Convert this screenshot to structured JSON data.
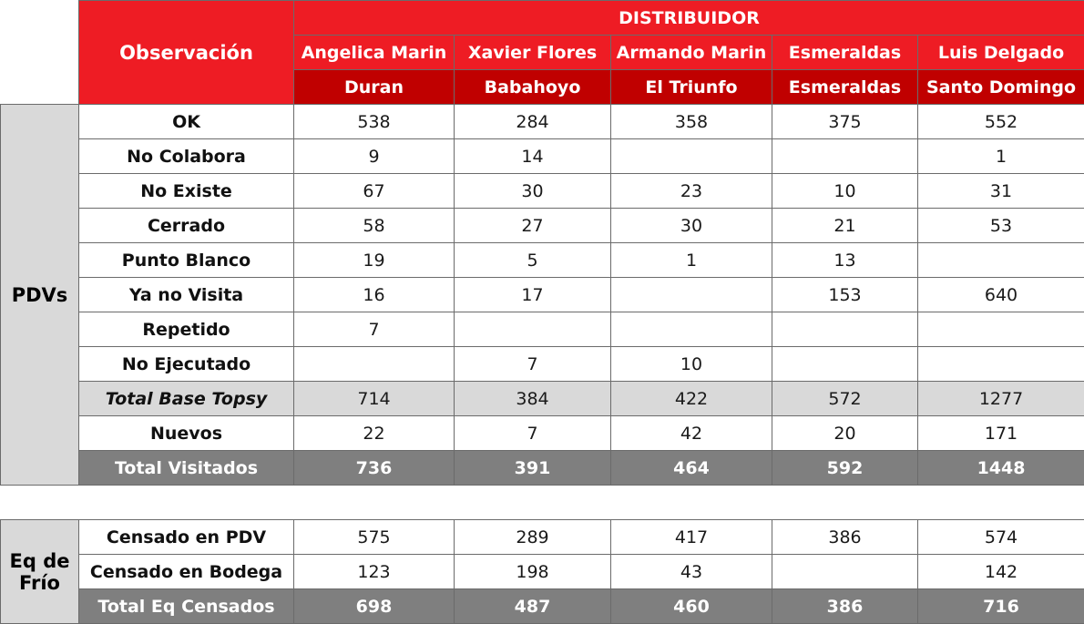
{
  "header": {
    "observation_label": "Observación",
    "distributor_label": "DISTRIBUIDOR",
    "distributors": [
      {
        "name": "Angelica Marin",
        "city": "Duran"
      },
      {
        "name": "Xavier Flores",
        "city": "Babahoyo"
      },
      {
        "name": "Armando Marin",
        "city": "El Triunfo"
      },
      {
        "name": "Esmeraldas",
        "city": "Esmeraldas"
      },
      {
        "name": "Luis Delgado",
        "city": "Santo Domingo"
      }
    ]
  },
  "pdv": {
    "side_label": "PDVs",
    "rows": [
      {
        "label": "OK",
        "values": [
          "538",
          "284",
          "358",
          "375",
          "552"
        ]
      },
      {
        "label": "No Colabora",
        "values": [
          "9",
          "14",
          "",
          "",
          "1"
        ]
      },
      {
        "label": "No Existe",
        "values": [
          "67",
          "30",
          "23",
          "10",
          "31"
        ]
      },
      {
        "label": "Cerrado",
        "values": [
          "58",
          "27",
          "30",
          "21",
          "53"
        ]
      },
      {
        "label": "Punto Blanco",
        "values": [
          "19",
          "5",
          "1",
          "13",
          ""
        ]
      },
      {
        "label": "Ya no Visita",
        "values": [
          "16",
          "17",
          "",
          "153",
          "640"
        ]
      },
      {
        "label": "Repetido",
        "values": [
          "7",
          "",
          "",
          "",
          ""
        ]
      },
      {
        "label": "No Ejecutado",
        "values": [
          "",
          "7",
          "10",
          "",
          ""
        ]
      },
      {
        "label": "Total Base Topsy",
        "values": [
          "714",
          "384",
          "422",
          "572",
          "1277"
        ]
      },
      {
        "label": "Nuevos",
        "values": [
          "22",
          "7",
          "42",
          "20",
          "171"
        ]
      },
      {
        "label": "Total Visitados",
        "values": [
          "736",
          "391",
          "464",
          "592",
          "1448"
        ]
      }
    ]
  },
  "frio": {
    "side_label_line1": "Eq de",
    "side_label_line2": "Frío",
    "rows": [
      {
        "label": "Censado en PDV",
        "values": [
          "575",
          "289",
          "417",
          "386",
          "574"
        ]
      },
      {
        "label": "Censado en Bodega",
        "values": [
          "123",
          "198",
          "43",
          "",
          "142"
        ]
      },
      {
        "label": "Total Eq Censados",
        "values": [
          "698",
          "487",
          "460",
          "386",
          "716"
        ]
      }
    ]
  },
  "colors": {
    "header_red": "#ee1c24",
    "header_dark_red": "#c00000",
    "total_gray": "#7f7f7f",
    "light_gray": "#d9d9d9"
  }
}
